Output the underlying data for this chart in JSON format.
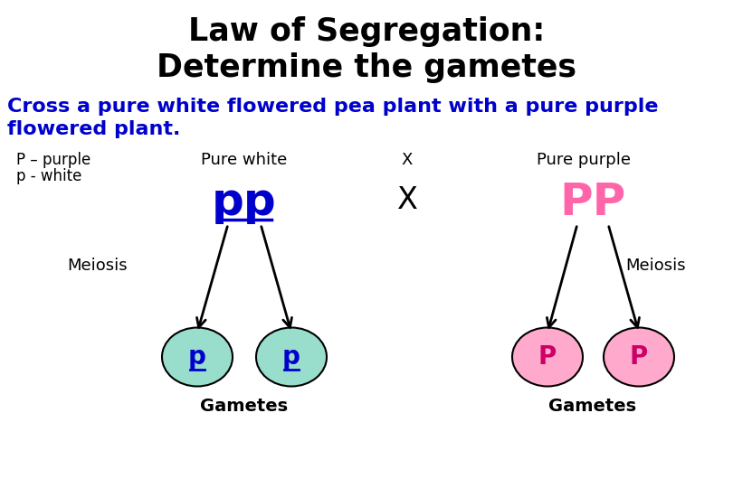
{
  "title_line1": "Law of Segregation:",
  "title_line2": "Determine the gametes",
  "subtitle_line1": "Cross a pure white flowered pea plant with a pure purple",
  "subtitle_line2": "flowered plant.",
  "subtitle_color": "#0000cc",
  "title_color": "#000000",
  "legend_p_purple": "P – purple",
  "legend_p_white": "p - white",
  "pure_white_label": "Pure white",
  "pure_purple_label": "Pure purple",
  "cross_symbol_top": "X",
  "cross_symbol_mid": "X",
  "white_genotype": "pp",
  "purple_genotype": "PP",
  "meiosis_label": "Meiosis",
  "gametes_label": "Gametes",
  "white_gamete": "p",
  "purple_gamete": "P",
  "white_circle_color": "#99ddcc",
  "purple_circle_color": "#ffaacc",
  "white_genotype_color": "#0000cc",
  "purple_genotype_color": "#ff66aa",
  "gamete_label_color": "#0000cc",
  "purple_gamete_label_color": "#cc0066",
  "background_color": "#ffffff",
  "arrow_color": "#000000",
  "underline_color": "#0000cc"
}
